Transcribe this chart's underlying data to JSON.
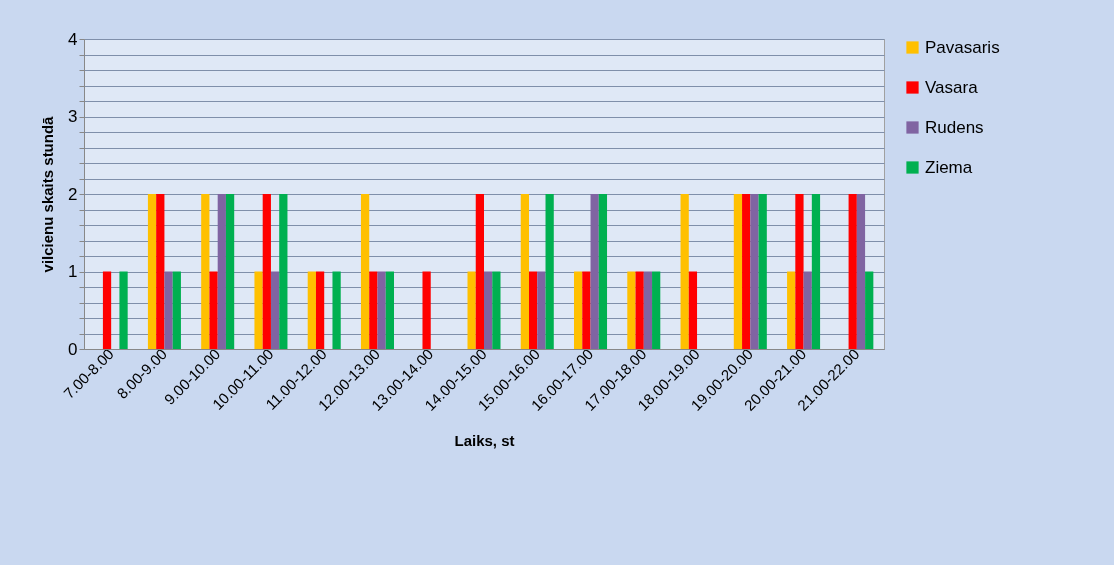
{
  "chart_data": {
    "type": "bar",
    "xlabel": "Laiks, st",
    "ylabel": "vilcienu skaits stundā",
    "categories": [
      "7.00-8.00",
      "8.00-9.00",
      "9.00-10.00",
      "10.00-11.00",
      "11.00-12.00",
      "12.00-13.00",
      "13.00-14.00",
      "14.00-15.00",
      "15.00-16.00",
      "16.00-17.00",
      "17.00-18.00",
      "18.00-19.00",
      "19.00-20.00",
      "20.00-21.00",
      "21.00-22.00"
    ],
    "series": [
      {
        "name": "Pavasaris",
        "color": "#ffc000",
        "values": [
          0,
          2,
          2,
          1,
          1,
          2,
          0,
          1,
          2,
          1,
          1,
          2,
          2,
          1,
          0
        ]
      },
      {
        "name": "Vasara",
        "color": "#ff0000",
        "values": [
          1,
          2,
          1,
          2,
          1,
          1,
          1,
          2,
          1,
          1,
          1,
          1,
          2,
          2,
          2
        ]
      },
      {
        "name": "Rudens",
        "color": "#8064a2",
        "values": [
          0,
          1,
          2,
          1,
          0,
          1,
          0,
          1,
          1,
          2,
          1,
          0,
          2,
          1,
          2
        ]
      },
      {
        "name": "Ziema",
        "color": "#00b050",
        "values": [
          1,
          1,
          2,
          2,
          1,
          1,
          0,
          1,
          2,
          2,
          1,
          0,
          2,
          2,
          1
        ]
      }
    ],
    "ylim": [
      0,
      4
    ],
    "yticks": [
      0,
      {
        "value": 0.2,
        "label": null
      },
      {
        "value": 0.4,
        "label": null
      },
      {
        "value": 0.6,
        "label": null
      },
      {
        "value": 0.8,
        "label": null
      },
      1,
      {
        "value": 1.2,
        "label": null
      },
      {
        "value": 1.4,
        "label": null
      },
      {
        "value": 1.6,
        "label": null
      },
      {
        "value": 1.8,
        "label": null
      },
      2,
      {
        "value": 2.2,
        "label": null
      },
      {
        "value": 2.4,
        "label": null
      },
      {
        "value": 2.6,
        "label": null
      },
      {
        "value": 2.8,
        "label": null
      },
      3,
      {
        "value": 3.2,
        "label": null
      },
      {
        "value": 3.4,
        "label": null
      },
      {
        "value": 3.6,
        "label": null
      },
      {
        "value": 3.8,
        "label": null
      },
      4
    ],
    "grid": true,
    "legend": "right"
  }
}
